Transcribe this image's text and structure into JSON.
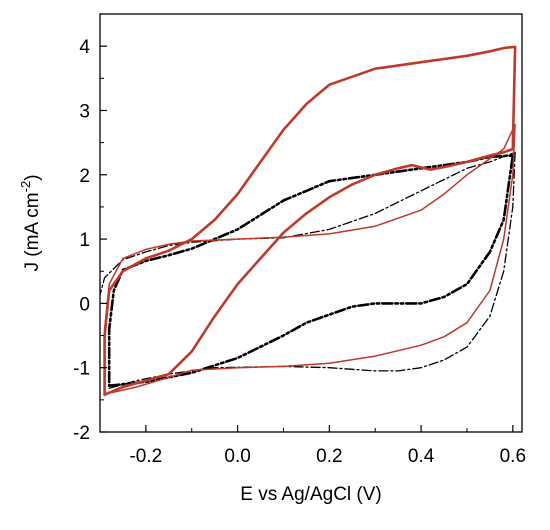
{
  "chart_data": {
    "type": "line",
    "title": "",
    "xlabel": "E vs Ag/AgCl (V)",
    "ylabel_main": "J (mA cm",
    "ylabel_sup": "-2",
    "ylabel_close": ")",
    "xlim": [
      -0.3,
      0.62
    ],
    "ylim": [
      -2,
      4.5
    ],
    "xticks": [
      -0.2,
      0.0,
      0.2,
      0.4,
      0.6
    ],
    "xtick_labels": [
      "-0.2",
      "0.0",
      "0.2",
      "0.4",
      "0.6"
    ],
    "yticks": [
      -2,
      -1,
      0,
      1,
      2,
      3,
      4
    ],
    "ytick_labels": [
      "-2",
      "-1",
      "0",
      "1",
      "2",
      "3",
      "4"
    ],
    "grid": false,
    "legend": "none",
    "series": [
      {
        "style": "dash-dot, thin, black",
        "color": "#000000",
        "values": [
          [
            -0.28,
            -1.32
          ],
          [
            -0.22,
            -1.2
          ],
          [
            -0.15,
            -1.1
          ],
          [
            -0.05,
            -1.0
          ],
          [
            0.1,
            -0.98
          ],
          [
            0.2,
            -1.0
          ],
          [
            0.3,
            -1.05
          ],
          [
            0.35,
            -1.05
          ],
          [
            0.4,
            -1.0
          ],
          [
            0.45,
            -0.88
          ],
          [
            0.5,
            -0.68
          ],
          [
            0.55,
            -0.2
          ],
          [
            0.58,
            0.5
          ],
          [
            0.6,
            1.5
          ],
          [
            0.605,
            2.35
          ],
          [
            0.55,
            2.2
          ],
          [
            0.5,
            2.1
          ],
          [
            0.4,
            1.75
          ],
          [
            0.3,
            1.4
          ],
          [
            0.2,
            1.15
          ],
          [
            0.1,
            1.02
          ],
          [
            0.0,
            1.0
          ],
          [
            -0.1,
            0.95
          ],
          [
            -0.15,
            0.9
          ],
          [
            -0.2,
            0.8
          ],
          [
            -0.25,
            0.68
          ],
          [
            -0.29,
            0.4
          ],
          [
            -0.305,
            0.0
          ],
          [
            -0.3,
            -0.7
          ]
        ]
      },
      {
        "style": "dash-dot-dot, thick, black",
        "color": "#000000",
        "values": [
          [
            -0.28,
            -1.28
          ],
          [
            -0.2,
            -1.22
          ],
          [
            -0.1,
            -1.08
          ],
          [
            0.0,
            -0.85
          ],
          [
            0.1,
            -0.5
          ],
          [
            0.15,
            -0.3
          ],
          [
            0.25,
            -0.05
          ],
          [
            0.3,
            0.0
          ],
          [
            0.35,
            0.0
          ],
          [
            0.4,
            0.0
          ],
          [
            0.45,
            0.1
          ],
          [
            0.5,
            0.3
          ],
          [
            0.55,
            0.8
          ],
          [
            0.58,
            1.3
          ],
          [
            0.6,
            2.3
          ],
          [
            0.55,
            2.28
          ],
          [
            0.5,
            2.2
          ],
          [
            0.4,
            2.1
          ],
          [
            0.3,
            2.0
          ],
          [
            0.2,
            1.9
          ],
          [
            0.1,
            1.6
          ],
          [
            0.0,
            1.15
          ],
          [
            -0.1,
            0.85
          ],
          [
            -0.15,
            0.75
          ],
          [
            -0.2,
            0.66
          ],
          [
            -0.25,
            0.52
          ],
          [
            -0.27,
            0.2
          ],
          [
            -0.28,
            -0.4
          ],
          [
            -0.28,
            -1.28
          ]
        ]
      },
      {
        "style": "solid, thin, red",
        "color": "#c0392b",
        "values": [
          [
            -0.29,
            -1.41
          ],
          [
            -0.22,
            -1.3
          ],
          [
            -0.15,
            -1.15
          ],
          [
            -0.1,
            -1.04
          ],
          [
            0.0,
            -1.0
          ],
          [
            0.1,
            -0.98
          ],
          [
            0.2,
            -0.93
          ],
          [
            0.3,
            -0.82
          ],
          [
            0.4,
            -0.65
          ],
          [
            0.45,
            -0.52
          ],
          [
            0.5,
            -0.3
          ],
          [
            0.55,
            0.2
          ],
          [
            0.58,
            1.0
          ],
          [
            0.6,
            2.0
          ],
          [
            0.605,
            2.78
          ],
          [
            0.58,
            2.4
          ],
          [
            0.5,
            2.0
          ],
          [
            0.45,
            1.7
          ],
          [
            0.4,
            1.45
          ],
          [
            0.3,
            1.2
          ],
          [
            0.2,
            1.08
          ],
          [
            0.1,
            1.03
          ],
          [
            0.0,
            1.0
          ],
          [
            -0.1,
            0.97
          ],
          [
            -0.15,
            0.92
          ],
          [
            -0.2,
            0.84
          ],
          [
            -0.25,
            0.7
          ],
          [
            -0.28,
            0.3
          ],
          [
            -0.29,
            -0.4
          ],
          [
            -0.29,
            -1.41
          ]
        ]
      },
      {
        "style": "solid, thick, red",
        "color": "#c0392b",
        "values": [
          [
            -0.29,
            -1.42
          ],
          [
            -0.25,
            -1.3
          ],
          [
            -0.2,
            -1.2
          ],
          [
            -0.15,
            -1.1
          ],
          [
            -0.1,
            -0.75
          ],
          [
            -0.05,
            -0.2
          ],
          [
            0.0,
            0.3
          ],
          [
            0.05,
            0.7
          ],
          [
            0.1,
            1.1
          ],
          [
            0.15,
            1.4
          ],
          [
            0.2,
            1.65
          ],
          [
            0.25,
            1.85
          ],
          [
            0.3,
            2.0
          ],
          [
            0.35,
            2.1
          ],
          [
            0.38,
            2.15
          ],
          [
            0.42,
            2.08
          ],
          [
            0.45,
            2.12
          ],
          [
            0.5,
            2.2
          ],
          [
            0.55,
            2.3
          ],
          [
            0.58,
            2.35
          ],
          [
            0.6,
            2.4
          ],
          [
            0.605,
            3.99
          ],
          [
            0.58,
            3.97
          ],
          [
            0.55,
            3.92
          ],
          [
            0.5,
            3.85
          ],
          [
            0.45,
            3.8
          ],
          [
            0.4,
            3.75
          ],
          [
            0.3,
            3.65
          ],
          [
            0.2,
            3.4
          ],
          [
            0.15,
            3.1
          ],
          [
            0.1,
            2.7
          ],
          [
            0.05,
            2.2
          ],
          [
            0.0,
            1.7
          ],
          [
            -0.05,
            1.3
          ],
          [
            -0.1,
            1.0
          ],
          [
            -0.15,
            0.82
          ],
          [
            -0.2,
            0.7
          ],
          [
            -0.25,
            0.5
          ],
          [
            -0.28,
            0.2
          ],
          [
            -0.29,
            -0.5
          ],
          [
            -0.29,
            -1.42
          ]
        ]
      }
    ]
  }
}
